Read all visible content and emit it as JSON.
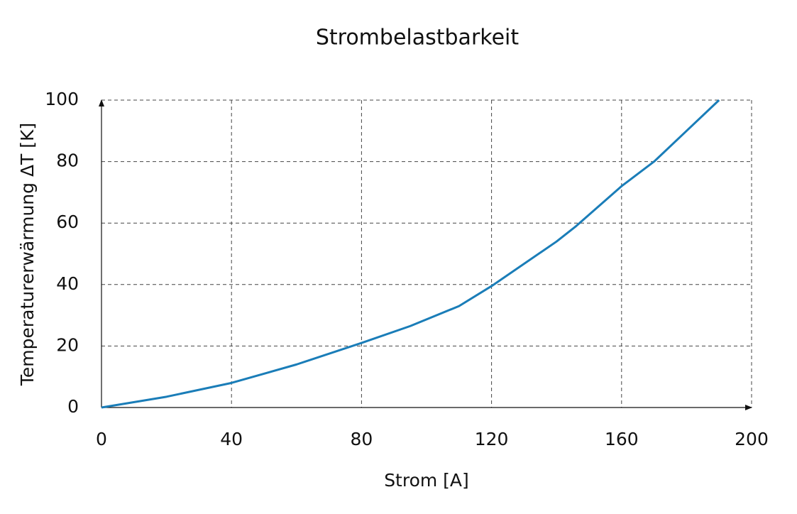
{
  "chart_data": {
    "type": "line",
    "title": "Strombelastbarkeit",
    "xlabel": "Strom [A]",
    "ylabel": "Temperaturerwärmung ΔT [K]",
    "x": [
      0,
      20,
      40,
      60,
      80,
      95,
      110,
      120,
      140,
      146,
      160,
      170,
      180,
      190
    ],
    "series": [
      {
        "name": "ΔT",
        "color": "#1a7db8",
        "values": [
          0,
          3.5,
          8,
          14,
          21,
          26.5,
          33,
          39.5,
          54,
          59,
          72,
          80,
          90,
          100
        ]
      }
    ],
    "xlim": [
      0,
      200
    ],
    "ylim": [
      0,
      100
    ],
    "xticks": [
      0,
      40,
      80,
      120,
      160,
      200
    ],
    "yticks": [
      0,
      20,
      40,
      60,
      80,
      100
    ],
    "grid": true
  }
}
